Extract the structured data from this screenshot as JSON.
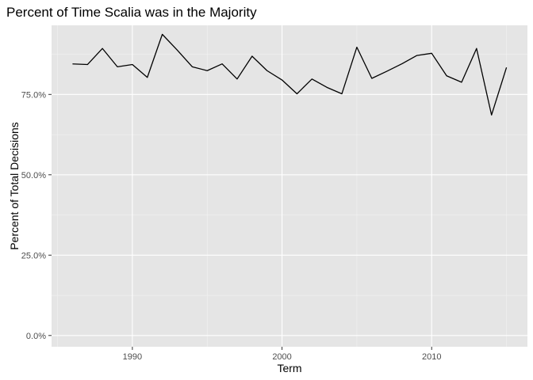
{
  "chart_data": {
    "type": "line",
    "title": "Percent of Time Scalia was in the Majority",
    "xlabel": "Term",
    "ylabel": "Percent of Total Decisions",
    "xlim": [
      1984.6,
      2016.4
    ],
    "ylim": [
      -0.035,
      0.965
    ],
    "x_ticks": [
      1990,
      2000,
      2010
    ],
    "x_tick_labels": [
      "1990",
      "2000",
      "2010"
    ],
    "y_ticks": [
      0.0,
      0.25,
      0.5,
      0.75
    ],
    "y_tick_labels": [
      "0.0%",
      "25.0%",
      "50.0%",
      "75.0%"
    ],
    "grid": true,
    "background": "#e5e5e5",
    "line_color": "#000000",
    "series": [
      {
        "x": [
          1986,
          1987,
          1988,
          1989,
          1990,
          1991,
          1992,
          1993,
          1994,
          1995,
          1996,
          1997,
          1998,
          1999,
          2000,
          2001,
          2002,
          2003,
          2004,
          2005,
          2006,
          2007,
          2008,
          2009,
          2010,
          2011,
          2012,
          2013,
          2014,
          2015
        ],
        "values": [
          0.845,
          0.843,
          0.893,
          0.836,
          0.843,
          0.803,
          0.937,
          0.888,
          0.836,
          0.824,
          0.845,
          0.798,
          0.869,
          0.824,
          0.795,
          0.752,
          0.798,
          0.772,
          0.752,
          0.897,
          0.8,
          0.822,
          0.845,
          0.871,
          0.878,
          0.808,
          0.788,
          0.893,
          0.686,
          0.834
        ]
      }
    ]
  }
}
